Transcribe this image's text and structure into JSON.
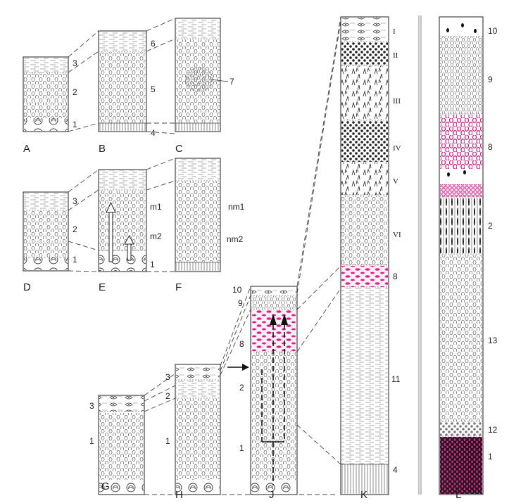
{
  "colors": {
    "accent": "#e0218a",
    "ink": "#333333"
  },
  "panels": {
    "A": {
      "caption": "A",
      "labels": [
        "3",
        "2",
        "1"
      ]
    },
    "B": {
      "caption": "B",
      "labels": [
        "6",
        "5",
        "4"
      ]
    },
    "C": {
      "caption": "C",
      "labels": [
        "7"
      ]
    },
    "D": {
      "caption": "D",
      "labels": [
        "3",
        "2",
        "1"
      ]
    },
    "E": {
      "caption": "E",
      "labels": [
        "m1",
        "m2",
        "1"
      ]
    },
    "F": {
      "caption": "F",
      "labels": [
        "nm1",
        "nm2"
      ]
    },
    "G": {
      "caption": "G",
      "labels": [
        "3",
        "1"
      ]
    },
    "H": {
      "caption": "H",
      "labels": [
        "3",
        "2",
        "1"
      ]
    },
    "J": {
      "caption": "J",
      "labels": [
        "10",
        "9",
        "8",
        "2",
        "1"
      ]
    },
    "K": {
      "caption": "K",
      "labels": [
        "I",
        "II",
        "III",
        "IV",
        "V",
        "VI",
        "8",
        "11",
        "4"
      ]
    },
    "L": {
      "caption": "L",
      "labels": [
        "10",
        "9",
        "8",
        "2",
        "13",
        "12",
        "1"
      ]
    }
  }
}
